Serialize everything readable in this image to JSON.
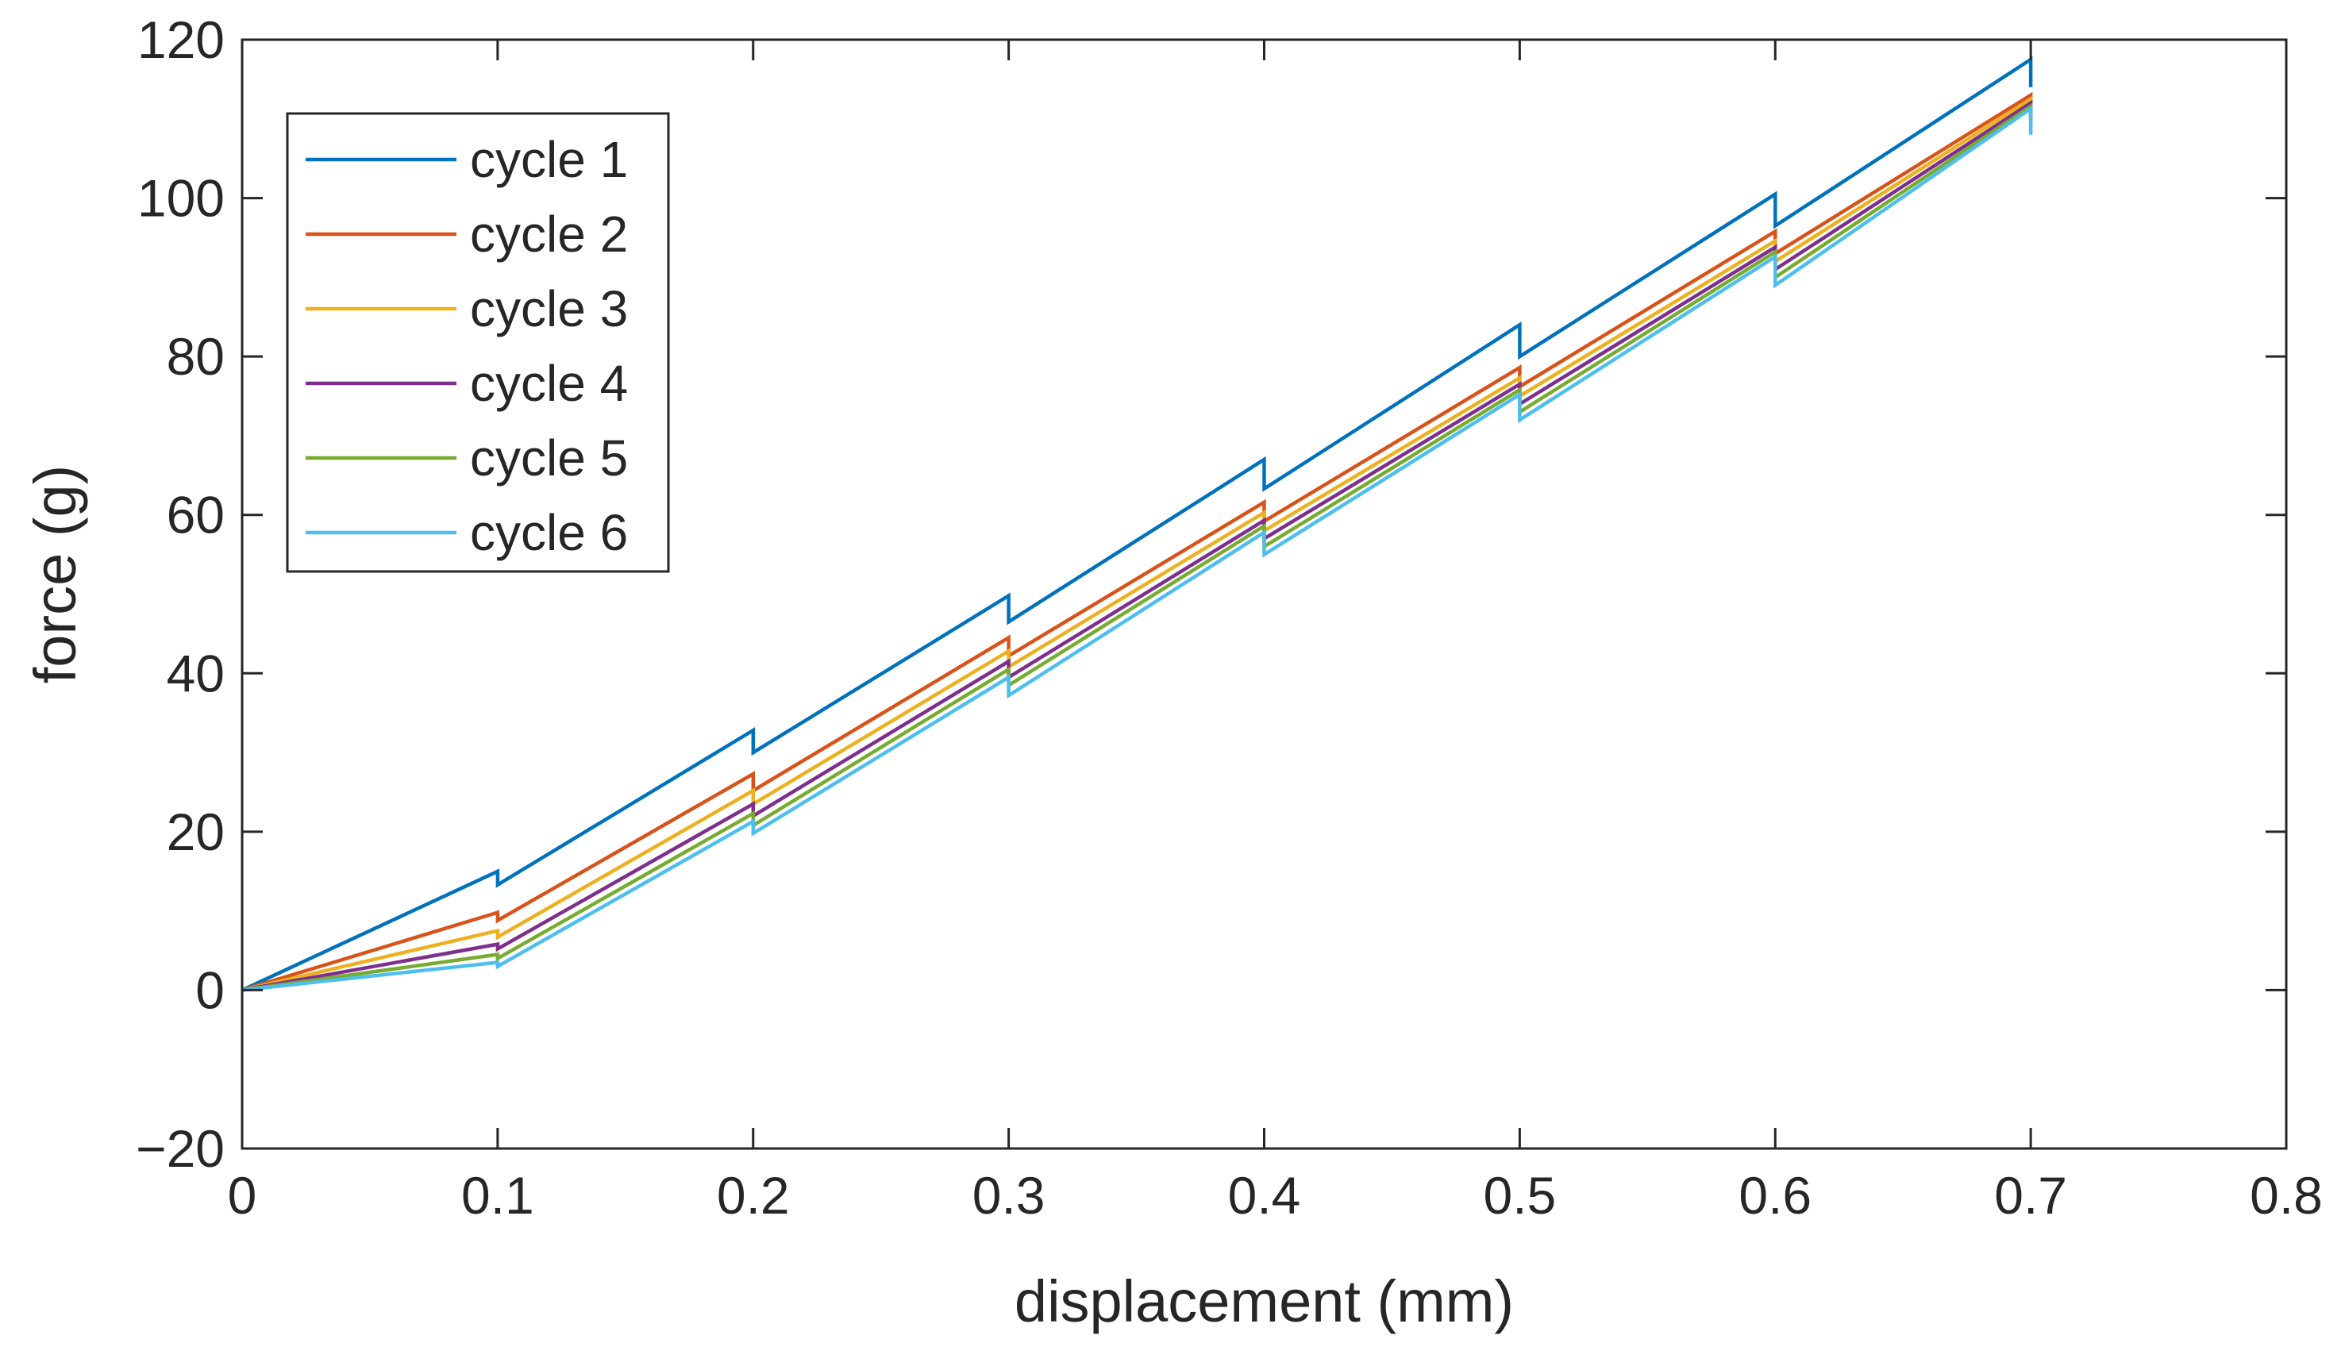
{
  "chart_data": {
    "type": "line",
    "title": "",
    "xlabel": "displacement (mm)",
    "ylabel": "force (g)",
    "xlim": [
      0,
      0.8
    ],
    "ylim": [
      -20,
      120
    ],
    "grid": false,
    "x_ticks": [
      0,
      0.1,
      0.2,
      0.3,
      0.4,
      0.5,
      0.6,
      0.7,
      0.8
    ],
    "x_tick_labels": [
      "0",
      "0.1",
      "0.2",
      "0.3",
      "0.4",
      "0.5",
      "0.6",
      "0.7",
      "0.8"
    ],
    "y_ticks": [
      -20,
      0,
      20,
      40,
      60,
      80,
      100,
      120
    ],
    "y_tick_labels": [
      "−20",
      "0",
      "20",
      "40",
      "60",
      "80",
      "100",
      "120"
    ],
    "legend_position": "top-left",
    "series": [
      {
        "name": "cycle 1",
        "color": "#0072BD",
        "points": [
          [
            0,
            0
          ],
          [
            0.1,
            15
          ],
          [
            0.1,
            13.3
          ],
          [
            0.2,
            32.8
          ],
          [
            0.2,
            30
          ],
          [
            0.3,
            49.8
          ],
          [
            0.3,
            46.5
          ],
          [
            0.4,
            67
          ],
          [
            0.4,
            63.3
          ],
          [
            0.5,
            84
          ],
          [
            0.5,
            80
          ],
          [
            0.6,
            100.5
          ],
          [
            0.6,
            96.5
          ],
          [
            0.7,
            117.5
          ],
          [
            0.7,
            114
          ]
        ]
      },
      {
        "name": "cycle 2",
        "color": "#D95319",
        "points": [
          [
            0,
            0
          ],
          [
            0.1,
            9.8
          ],
          [
            0.1,
            8.8
          ],
          [
            0.2,
            27.3
          ],
          [
            0.2,
            25.2
          ],
          [
            0.3,
            44.5
          ],
          [
            0.3,
            42.2
          ],
          [
            0.4,
            61.6
          ],
          [
            0.4,
            59.2
          ],
          [
            0.5,
            78.6
          ],
          [
            0.5,
            76.2
          ],
          [
            0.6,
            95.8
          ],
          [
            0.6,
            93
          ],
          [
            0.7,
            113
          ],
          [
            0.7,
            111.5
          ]
        ]
      },
      {
        "name": "cycle 3",
        "color": "#EDB120",
        "points": [
          [
            0,
            0
          ],
          [
            0.1,
            7.5
          ],
          [
            0.1,
            6.7
          ],
          [
            0.2,
            25.2
          ],
          [
            0.2,
            23.5
          ],
          [
            0.3,
            42.8
          ],
          [
            0.3,
            40.8
          ],
          [
            0.4,
            60.3
          ],
          [
            0.4,
            58
          ],
          [
            0.5,
            77.3
          ],
          [
            0.5,
            75
          ],
          [
            0.6,
            94.6
          ],
          [
            0.6,
            92
          ],
          [
            0.7,
            112.5
          ],
          [
            0.7,
            110.5
          ]
        ]
      },
      {
        "name": "cycle 4",
        "color": "#7E2F8E",
        "points": [
          [
            0,
            0
          ],
          [
            0.1,
            5.8
          ],
          [
            0.1,
            5.2
          ],
          [
            0.2,
            23.5
          ],
          [
            0.2,
            22
          ],
          [
            0.3,
            41.5
          ],
          [
            0.3,
            39.5
          ],
          [
            0.4,
            59.3
          ],
          [
            0.4,
            57
          ],
          [
            0.5,
            76.5
          ],
          [
            0.5,
            74
          ],
          [
            0.6,
            93.8
          ],
          [
            0.6,
            91
          ],
          [
            0.7,
            112
          ],
          [
            0.7,
            110
          ]
        ]
      },
      {
        "name": "cycle 5",
        "color": "#77AC30",
        "points": [
          [
            0,
            0
          ],
          [
            0.1,
            4.5
          ],
          [
            0.1,
            4
          ],
          [
            0.2,
            22.3
          ],
          [
            0.2,
            20.8
          ],
          [
            0.3,
            40.5
          ],
          [
            0.3,
            38.5
          ],
          [
            0.4,
            58.6
          ],
          [
            0.4,
            56
          ],
          [
            0.5,
            75.8
          ],
          [
            0.5,
            73
          ],
          [
            0.6,
            93.2
          ],
          [
            0.6,
            90
          ],
          [
            0.7,
            111.6
          ],
          [
            0.7,
            109.2
          ]
        ]
      },
      {
        "name": "cycle 6",
        "color": "#4DBEEE",
        "points": [
          [
            0,
            0
          ],
          [
            0.1,
            3.5
          ],
          [
            0.1,
            3
          ],
          [
            0.2,
            21.3
          ],
          [
            0.2,
            19.8
          ],
          [
            0.3,
            39.5
          ],
          [
            0.3,
            37.2
          ],
          [
            0.4,
            57.8
          ],
          [
            0.4,
            55
          ],
          [
            0.5,
            75.2
          ],
          [
            0.5,
            72
          ],
          [
            0.6,
            92.6
          ],
          [
            0.6,
            89
          ],
          [
            0.7,
            111.3
          ],
          [
            0.7,
            108
          ]
        ]
      }
    ]
  }
}
